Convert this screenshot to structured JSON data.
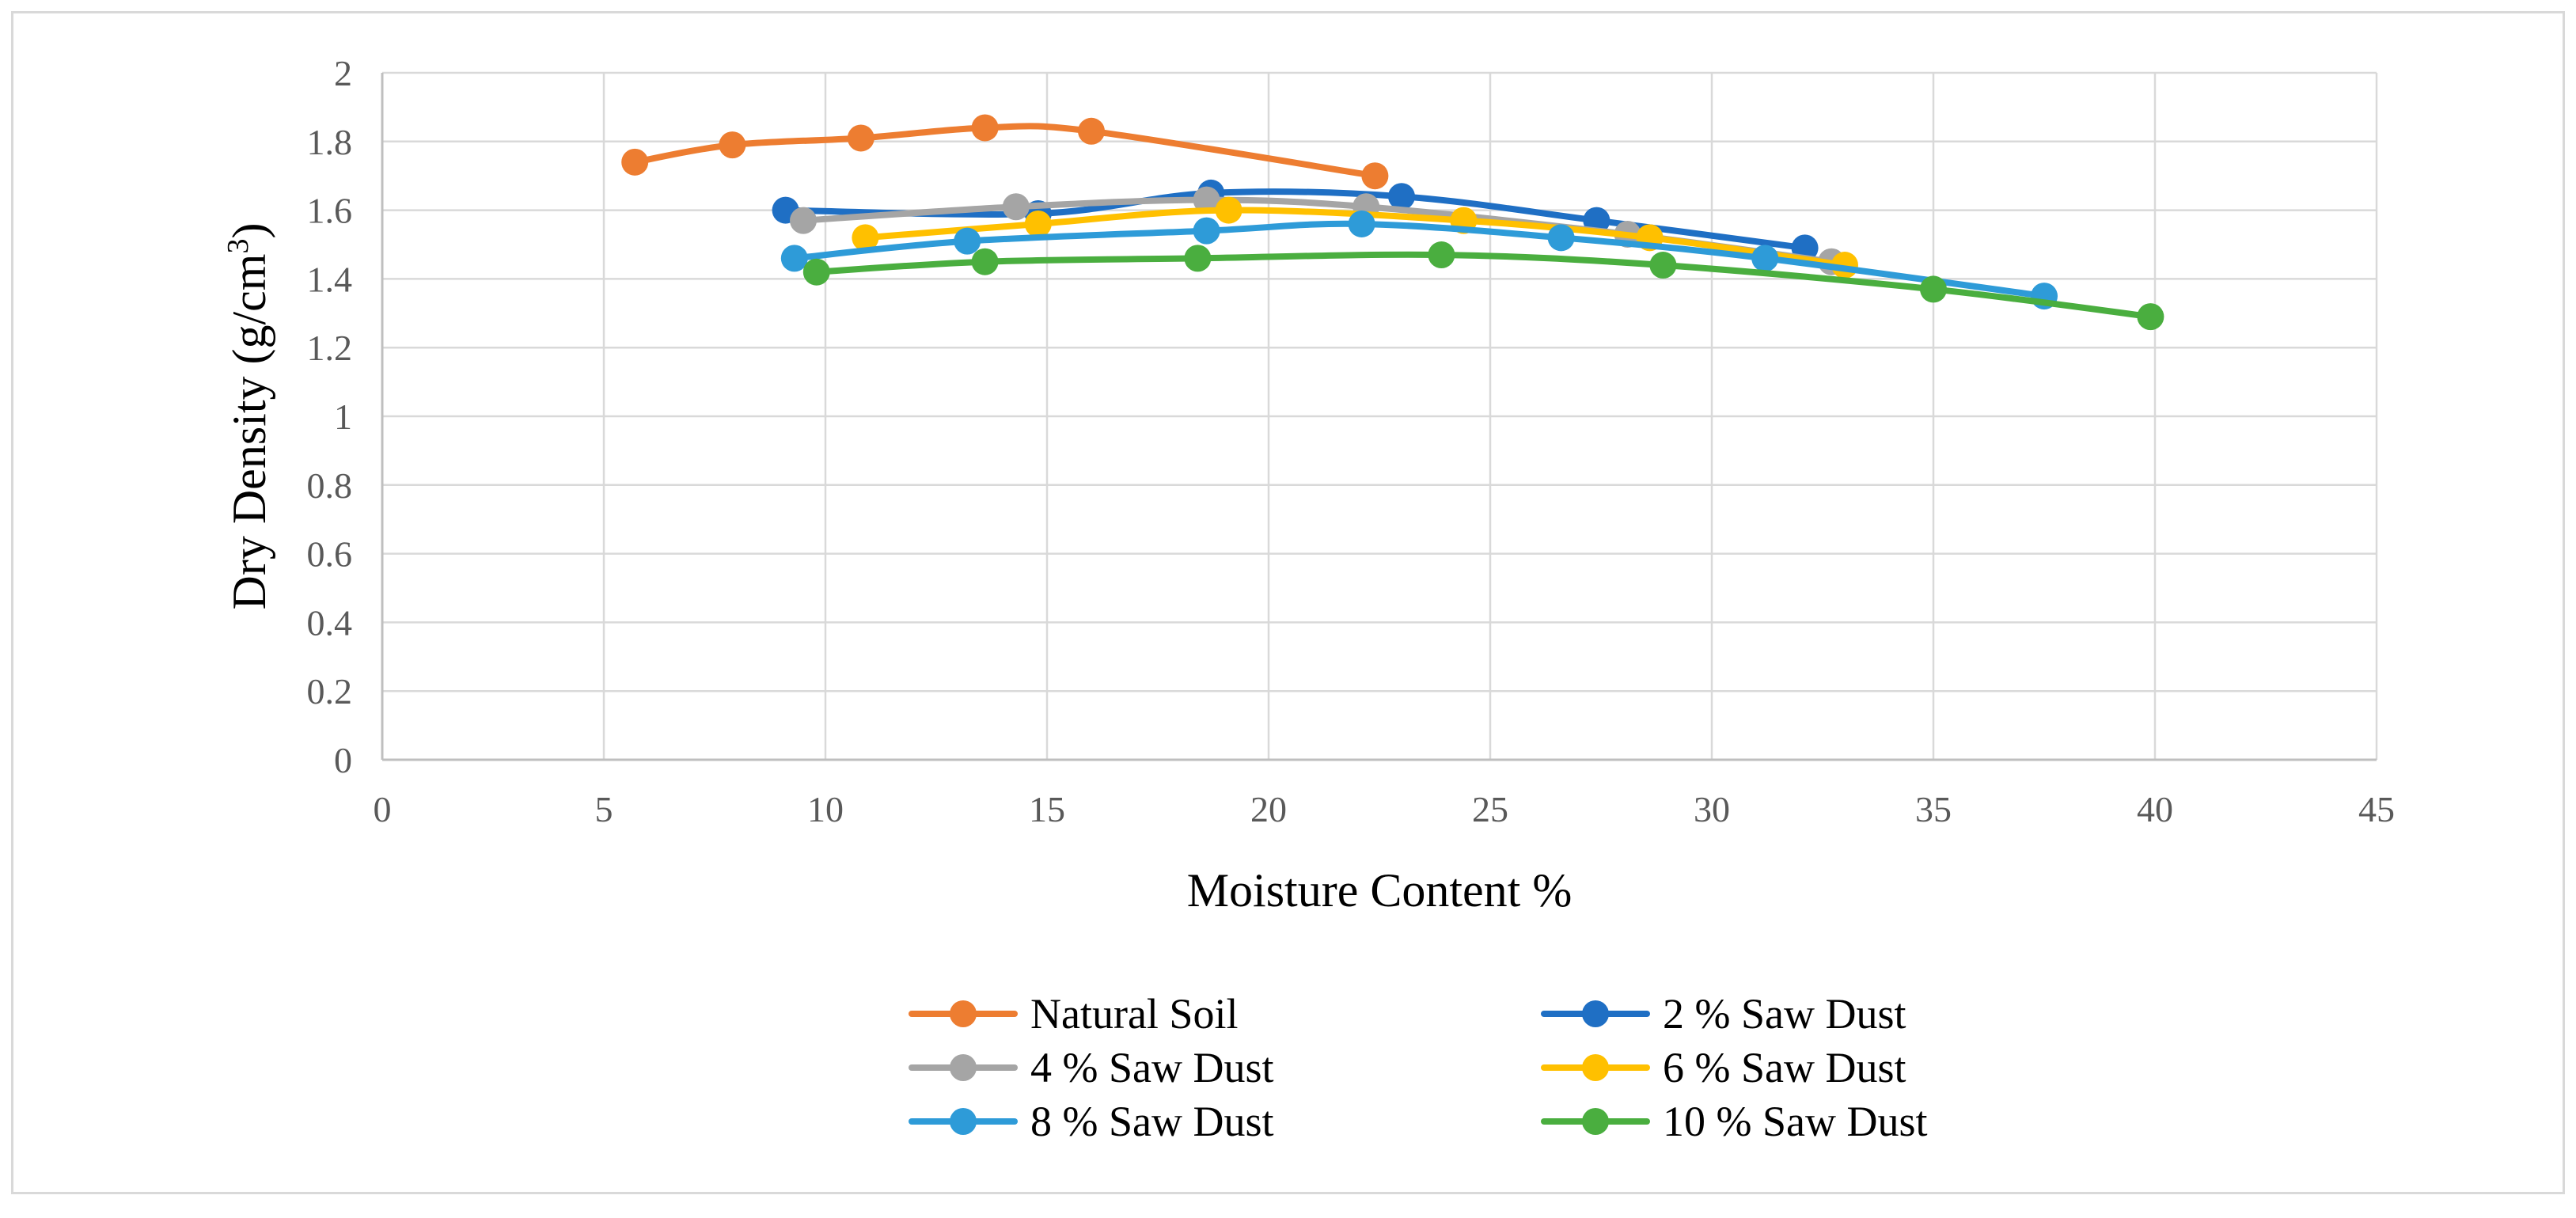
{
  "chart_data": {
    "type": "scatter",
    "title": "",
    "xlabel": "Moisture Content %",
    "ylabel": "Dry Density (g/cm",
    "ylabel_sup": "3",
    "ylabel_close": ")",
    "xlim": [
      0,
      45
    ],
    "ylim": [
      0,
      2
    ],
    "x_ticks": [
      0,
      5,
      10,
      15,
      20,
      25,
      30,
      35,
      40,
      45
    ],
    "x_tick_labels": [
      "0",
      "5",
      "10",
      "15",
      "20",
      "25",
      "30",
      "35",
      "40",
      "45"
    ],
    "y_ticks": [
      0,
      0.2,
      0.4,
      0.6,
      0.8,
      1,
      1.2,
      1.4,
      1.6,
      1.8,
      2
    ],
    "y_tick_labels": [
      "0",
      "0.2",
      "0.4",
      "0.6",
      "0.8",
      "1",
      "1.2",
      "1.4",
      "1.6",
      "1.8",
      "2"
    ],
    "grid": true,
    "legend_position": "bottom",
    "series": [
      {
        "name": "Natural Soil",
        "color": "#ED7D31",
        "x": [
          5.7,
          7.9,
          10.8,
          13.6,
          16.0,
          22.4
        ],
        "y": [
          1.74,
          1.79,
          1.81,
          1.84,
          1.83,
          1.7
        ]
      },
      {
        "name": "2 % Saw Dust",
        "color": "#1F6FC4",
        "x": [
          9.1,
          14.8,
          18.7,
          23.0,
          27.4,
          32.1
        ],
        "y": [
          1.6,
          1.59,
          1.65,
          1.64,
          1.57,
          1.49
        ]
      },
      {
        "name": "4 % Saw Dust",
        "color": "#A5A5A5",
        "x": [
          9.5,
          14.3,
          18.6,
          22.2,
          28.1,
          32.7
        ],
        "y": [
          1.57,
          1.61,
          1.63,
          1.61,
          1.53,
          1.45
        ]
      },
      {
        "name": "6 % Saw Dust",
        "color": "#FFC000",
        "x": [
          10.9,
          14.8,
          19.1,
          24.4,
          28.6,
          33.0
        ],
        "y": [
          1.52,
          1.56,
          1.6,
          1.57,
          1.52,
          1.44
        ]
      },
      {
        "name": "8 % Saw Dust",
        "color": "#2E9BD8",
        "x": [
          9.3,
          13.2,
          18.6,
          22.1,
          26.6,
          31.2,
          37.5
        ],
        "y": [
          1.46,
          1.51,
          1.54,
          1.56,
          1.52,
          1.46,
          1.35
        ]
      },
      {
        "name": "10 % Saw Dust",
        "color": "#4AAE3F",
        "x": [
          9.8,
          13.6,
          18.4,
          23.9,
          28.9,
          35.0,
          39.9
        ],
        "y": [
          1.42,
          1.45,
          1.46,
          1.47,
          1.44,
          1.37,
          1.29
        ]
      }
    ]
  }
}
